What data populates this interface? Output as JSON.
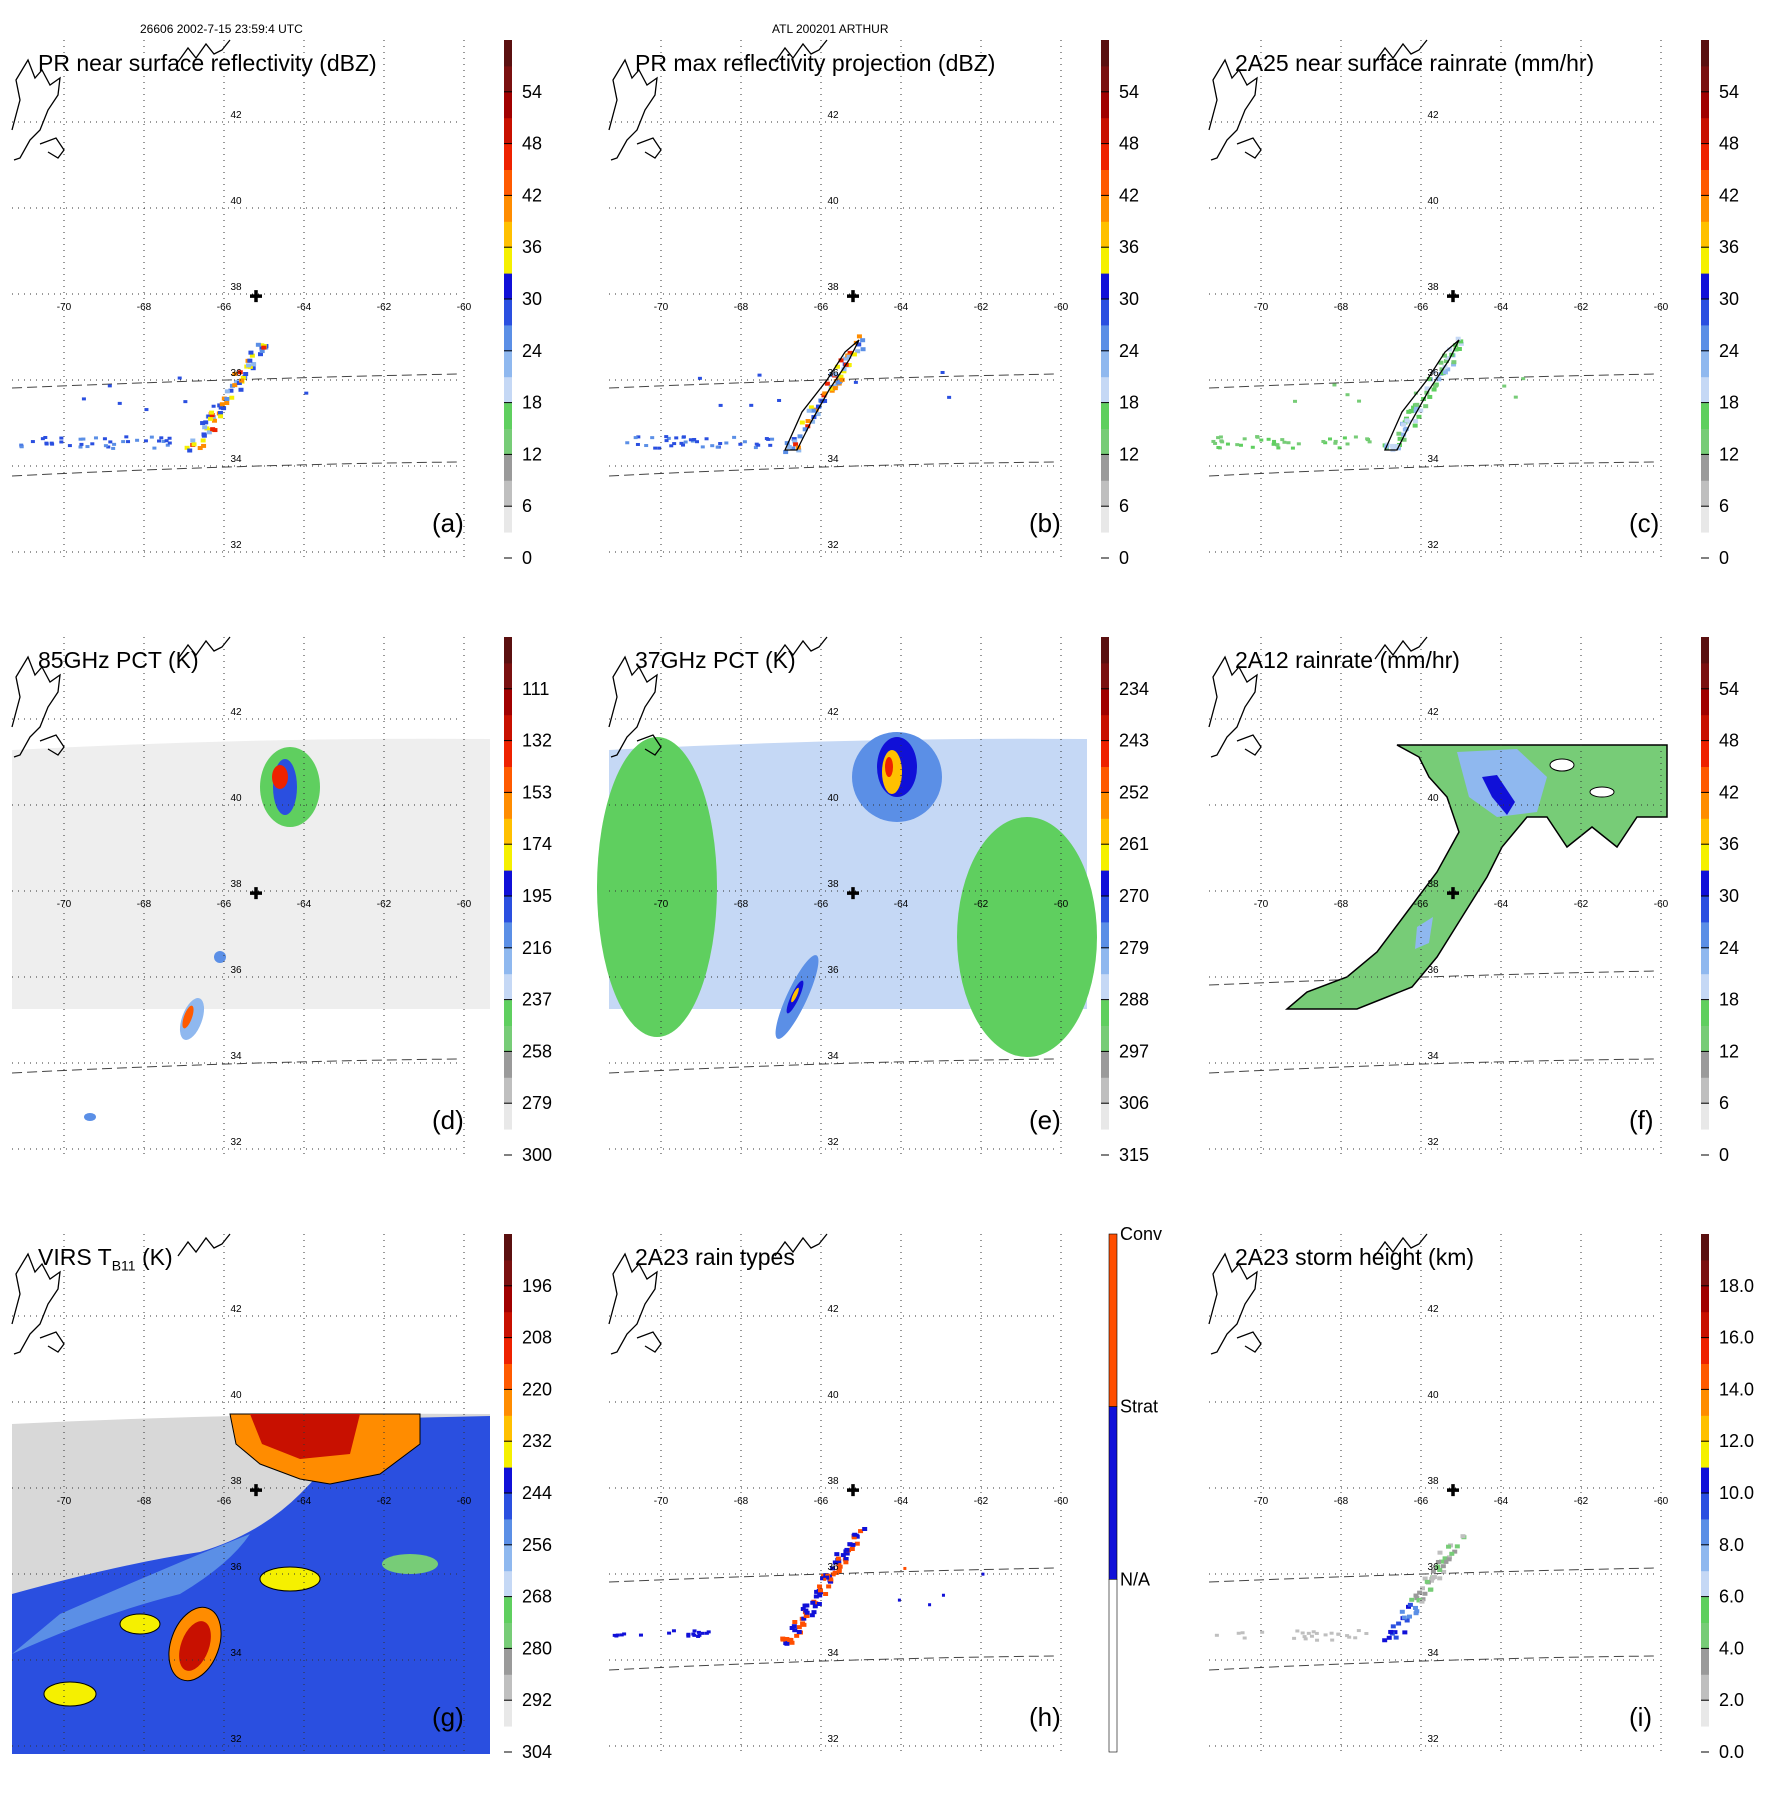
{
  "header": {
    "left": "26606 2002-7-15 23:59:4 UTC",
    "center": "ATL 200201 ARTHUR"
  },
  "map": {
    "lon_labels": [
      "-70",
      "-68",
      "-66",
      "-64",
      "-62",
      "-60"
    ],
    "lat_labels": [
      "42",
      "40",
      "38",
      "36",
      "34",
      "32"
    ]
  },
  "panels": [
    {
      "id": "a",
      "title": "PR near surface reflectivity (dBZ)",
      "label": "(a)",
      "colorbar": {
        "ticks": [
          "54",
          "48",
          "42",
          "36",
          "30",
          "24",
          "18",
          "12",
          "6",
          "0"
        ]
      },
      "field": "swath"
    },
    {
      "id": "b",
      "title": "PR max reflectivity projection (dBZ)",
      "label": "(b)",
      "colorbar": {
        "ticks": [
          "54",
          "48",
          "42",
          "36",
          "30",
          "24",
          "18",
          "12",
          "6",
          "0"
        ]
      },
      "field": "swath"
    },
    {
      "id": "c",
      "title": "2A25 near surface rainrate (mm/hr)",
      "label": "(c)",
      "colorbar": {
        "ticks": [
          "54",
          "48",
          "42",
          "36",
          "30",
          "24",
          "18",
          "12",
          "6",
          "0"
        ]
      },
      "field": "swath"
    },
    {
      "id": "d",
      "title": "85GHz PCT (K)",
      "label": "(d)",
      "colorbar": {
        "ticks": [
          "111",
          "132",
          "153",
          "174",
          "195",
          "216",
          "237",
          "258",
          "279",
          "300"
        ]
      },
      "field": "pct85"
    },
    {
      "id": "e",
      "title": "37GHz PCT (K)",
      "label": "(e)",
      "colorbar": {
        "ticks": [
          "234",
          "243",
          "252",
          "261",
          "270",
          "279",
          "288",
          "297",
          "306",
          "315"
        ]
      },
      "field": "pct37"
    },
    {
      "id": "f",
      "title": "2A12 rainrate (mm/hr)",
      "label": "(f)",
      "colorbar": {
        "ticks": [
          "54",
          "48",
          "42",
          "36",
          "30",
          "24",
          "18",
          "12",
          "6",
          "0"
        ]
      },
      "field": "rain2a12"
    },
    {
      "id": "g",
      "title": "VIRS T",
      "title_sub": "B11",
      "title_suffix": " (K)",
      "label": "(g)",
      "colorbar": {
        "ticks": [
          "196",
          "208",
          "220",
          "232",
          "244",
          "256",
          "268",
          "280",
          "292",
          "304"
        ]
      },
      "field": "virs"
    },
    {
      "id": "h",
      "title": "2A23 rain types",
      "label": "(h)",
      "colorbar": {
        "categories": [
          "Conv",
          "Strat",
          "N/A"
        ]
      },
      "field": "types"
    },
    {
      "id": "i",
      "title": "2A23 storm height (km)",
      "label": "(i)",
      "colorbar": {
        "ticks": [
          "18.0",
          "16.0",
          "14.0",
          "12.0",
          "10.0",
          "8.0",
          "6.0",
          "4.0",
          "2.0",
          "0.0"
        ]
      },
      "field": "height"
    }
  ],
  "colors": {
    "colorbar_scale": [
      "#ffffff",
      "#e8e8e8",
      "#bfbfbf",
      "#9a9a9a",
      "#77cc77",
      "#5fcf5f",
      "#c5d8f5",
      "#8fb8ef",
      "#5b8fe6",
      "#2a4fe0",
      "#1010d8",
      "#f5f000",
      "#ffc000",
      "#ff8c00",
      "#ff5a00",
      "#ee2200",
      "#c81000",
      "#a00000",
      "#7a1010",
      "#5a1010"
    ],
    "rain_types": [
      "#ffffff",
      "#1010d8",
      "#ff4e00"
    ]
  }
}
